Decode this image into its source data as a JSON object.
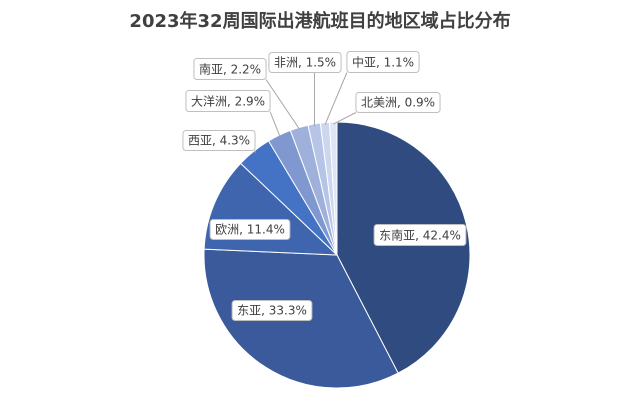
{
  "chart_data": {
    "type": "pie",
    "title": "2023年32周国际出港航班目的地区域占比分布",
    "values": [
      42.4,
      33.3,
      11.4,
      4.3,
      2.9,
      2.2,
      1.5,
      1.1,
      0.9
    ],
    "value_labels": [
      "东南亚, 42.4%",
      "东亚, 33.3%",
      "欧洲, 11.4%",
      "西亚, 4.3%",
      "大洋洲, 2.9%",
      "南亚, 2.2%",
      "非洲, 1.5%",
      "中亚, 1.1%",
      "北美洲, 0.9%"
    ],
    "colors": [
      "#2f4b7f",
      "#3a5a9b",
      "#3e65ae",
      "#4472c4",
      "#7f98d0",
      "#9fb1db",
      "#b6c5e6",
      "#ccd7ee",
      "#dee5f4"
    ]
  }
}
